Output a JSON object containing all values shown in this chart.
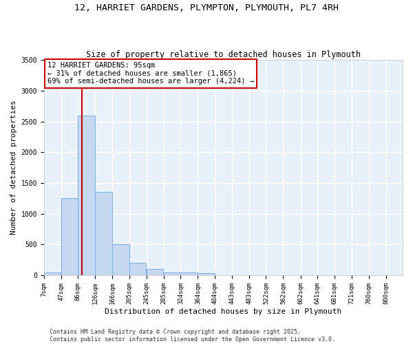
{
  "title_line1": "12, HARRIET GARDENS, PLYMPTON, PLYMOUTH, PL7 4RH",
  "title_line2": "Size of property relative to detached houses in Plymouth",
  "xlabel": "Distribution of detached houses by size in Plymouth",
  "ylabel": "Number of detached properties",
  "bar_left_edges": [
    7,
    47,
    86,
    126,
    166,
    205,
    245,
    285,
    324,
    364,
    404,
    443,
    483,
    522,
    562,
    602,
    641,
    681,
    721,
    760
  ],
  "bar_widths": [
    39,
    39,
    39,
    39,
    39,
    39,
    39,
    39,
    39,
    39,
    39,
    39,
    39,
    39,
    39,
    39,
    39,
    39,
    39,
    39
  ],
  "bar_heights": [
    50,
    1250,
    2600,
    1350,
    500,
    200,
    100,
    50,
    50,
    30,
    0,
    0,
    0,
    0,
    0,
    0,
    0,
    0,
    0,
    0
  ],
  "tick_labels": [
    "7sqm",
    "47sqm",
    "86sqm",
    "126sqm",
    "166sqm",
    "205sqm",
    "245sqm",
    "285sqm",
    "324sqm",
    "364sqm",
    "404sqm",
    "443sqm",
    "483sqm",
    "522sqm",
    "562sqm",
    "602sqm",
    "641sqm",
    "681sqm",
    "721sqm",
    "760sqm",
    "800sqm"
  ],
  "bar_color": "#c5d8f0",
  "bar_edge_color": "#7aafe0",
  "bg_color": "#e8f0fa",
  "grid_color": "#ffffff",
  "vline_x": 95,
  "vline_color": "#cc0000",
  "annotation_text": "12 HARRIET GARDENS: 95sqm\n← 31% of detached houses are smaller (1,865)\n69% of semi-detached houses are larger (4,224) →",
  "annotation_box_color": "#cc0000",
  "ylim": [
    0,
    3500
  ],
  "yticks": [
    0,
    500,
    1000,
    1500,
    2000,
    2500,
    3000,
    3500
  ],
  "footnote_line1": "Contains HM Land Registry data © Crown copyright and database right 2025.",
  "footnote_line2": "Contains public sector information licensed under the Open Government Licence v3.0.",
  "title_fontsize": 9.5,
  "subtitle_fontsize": 8.5,
  "axis_label_fontsize": 8,
  "tick_fontsize": 6.5,
  "annotation_fontsize": 7.5,
  "footnote_fontsize": 6,
  "figwidth": 6.0,
  "figheight": 5.0,
  "dpi": 100
}
